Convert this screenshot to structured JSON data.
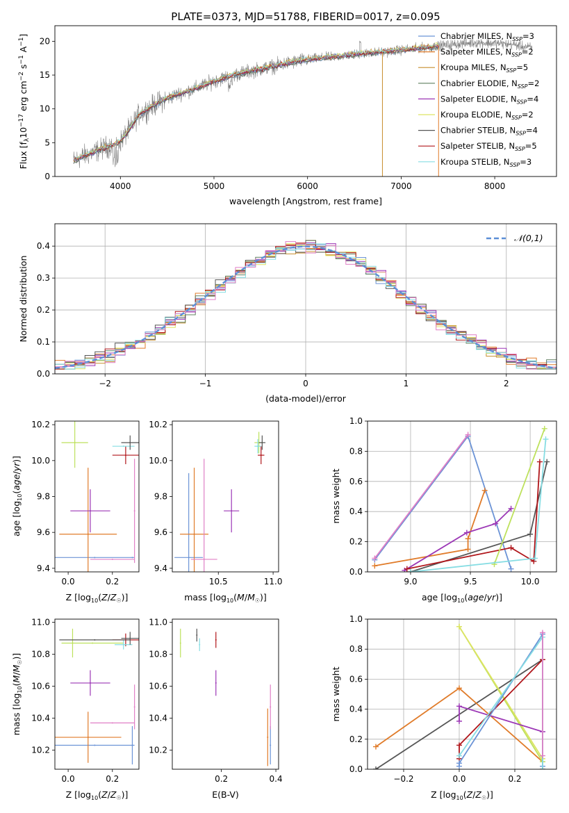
{
  "figure_title": "PLATE=0373, MJD=51788, FIBERID=0017, z=0.095",
  "colors": {
    "Chabrier MILES": "#6b93d6",
    "Salpeter MILES": "#e07b29",
    "Kroupa MILES": "#c78d2c",
    "Chabrier ELODIE": "#5f7f5f",
    "Salpeter ELODIE": "#9b36b5",
    "Kroupa ELODIE": "#dde463",
    "Chabrier STELIB": "#555555",
    "Salpeter STELIB": "#b0161b",
    "Kroupa STELIB": "#86dde3",
    "magenta_series": "#e07fc6",
    "lime_series": "#bde15c",
    "spectrum": "#808080",
    "gaussian": "#5b8ed6"
  },
  "chart_data": [
    {
      "id": "spectrum",
      "type": "line",
      "title": "PLATE=0373, MJD=51788, FIBERID=0017, z=0.095",
      "xlabel": "wavelength [Angstrom, rest frame]",
      "ylabel": "Flux [f_λ 10^-17 erg cm^-2 s^-1 A^-1]",
      "xlim": [
        3300,
        8660
      ],
      "ylim": [
        0,
        22.3
      ],
      "xticks": [
        4000,
        5000,
        6000,
        7000,
        8000
      ],
      "yticks": [
        0,
        5,
        10,
        15,
        20
      ],
      "grid": false,
      "legend_position": "right",
      "continuum": {
        "x": [
          3500,
          3600,
          3700,
          3800,
          3900,
          4000,
          4100,
          4200,
          4400,
          4600,
          4800,
          5000,
          5200,
          5400,
          5600,
          5800,
          6000,
          6200,
          6400,
          6600,
          6800,
          7000,
          7200,
          7400,
          7600,
          7800,
          8000,
          8200,
          8400
        ],
        "y": [
          2.3,
          3.0,
          3.5,
          4.1,
          4.6,
          5.2,
          7.0,
          9.2,
          10.9,
          12.1,
          13.0,
          14.1,
          15.0,
          15.6,
          16.2,
          16.8,
          17.3,
          17.6,
          17.9,
          18.2,
          18.4,
          18.7,
          19.0,
          19.3,
          19.6,
          19.8,
          19.7,
          19.5,
          19.0
        ]
      },
      "models_end_x": 7400,
      "sky_line_drops": [
        {
          "x": 6800,
          "series": "Kroupa MILES"
        },
        {
          "x": 7400,
          "series": "Salpeter MILES"
        }
      ],
      "legend": [
        {
          "label": "Chabrier MILES, N",
          "sub": "SSP",
          "n": "=3"
        },
        {
          "label": "Salpeter MILES, N",
          "sub": "SSP",
          "n": "=2"
        },
        {
          "label": "Kroupa MILES, N",
          "sub": "SSP",
          "n": "=5"
        },
        {
          "label": "Chabrier ELODIE, N",
          "sub": "SSP",
          "n": "=2"
        },
        {
          "label": "Salpeter ELODIE, N",
          "sub": "SSP",
          "n": "=4"
        },
        {
          "label": "Kroupa ELODIE, N",
          "sub": "SSP",
          "n": "=2"
        },
        {
          "label": "Chabrier STELIB, N",
          "sub": "SSP",
          "n": "=4"
        },
        {
          "label": "Salpeter STELIB, N",
          "sub": "SSP",
          "n": "=5"
        },
        {
          "label": "Kroupa STELIB, N",
          "sub": "SSP",
          "n": "=3"
        }
      ]
    },
    {
      "id": "residuals",
      "type": "line",
      "xlabel": "(data-model)/error",
      "ylabel": "Normed distribution",
      "xlim": [
        -2.5,
        2.5
      ],
      "ylim": [
        0,
        0.47
      ],
      "xticks": [
        -2,
        -1,
        0,
        1,
        2
      ],
      "yticks": [
        0.0,
        0.1,
        0.2,
        0.3,
        0.4
      ],
      "grid": true,
      "legend_position": "top-right",
      "legend": "N(0,1)",
      "bin_width": 0.1,
      "bin_start": -2.5,
      "gaussian": {
        "mean": 0,
        "sigma": 1
      }
    },
    {
      "id": "age_vs_Z",
      "type": "scatter",
      "xlabel": "Z [log10(Z/Z☉)]",
      "ylabel": "age [log10(age/yr)]",
      "xlim": [
        -0.06,
        0.32
      ],
      "ylim": [
        9.38,
        10.22
      ],
      "xticks": [
        0.0,
        0.2
      ],
      "yticks": [
        9.4,
        9.6,
        9.8,
        10.0,
        10.2
      ],
      "grid": false,
      "points": [
        {
          "series": "Chabrier MILES",
          "x": 0.12,
          "y": 9.46,
          "xerr": 0.18,
          "yerr": 0.0
        },
        {
          "series": "Chabrier MILES",
          "x": 0.29,
          "y": 9.46,
          "xerr": 0.0,
          "yerr": 0.0
        },
        {
          "series": "Salpeter MILES",
          "x": 0.09,
          "y": 9.59,
          "xerr": 0.13,
          "yerr": 0.37
        },
        {
          "series": "magenta_series",
          "x": 0.2,
          "y": 9.45,
          "xerr": 0.1,
          "yerr": 0.0
        },
        {
          "series": "magenta_series",
          "x": 0.3,
          "y": 9.72,
          "xerr": 0.0,
          "yerr": 0.29
        },
        {
          "series": "Salpeter ELODIE",
          "x": 0.1,
          "y": 9.72,
          "xerr": 0.09,
          "yerr": 0.12
        },
        {
          "series": "Salpeter STELIB",
          "x": 0.26,
          "y": 10.03,
          "xerr": 0.06,
          "yerr": 0.05
        },
        {
          "series": "lime_series",
          "x": 0.03,
          "y": 10.1,
          "xerr": 0.06,
          "yerr": 0.14
        },
        {
          "series": "Kroupa STELIB",
          "x": 0.25,
          "y": 10.08,
          "xerr": 0.05,
          "yerr": 0.0
        },
        {
          "series": "Chabrier STELIB",
          "x": 0.28,
          "y": 10.1,
          "xerr": 0.04,
          "yerr": 0.04
        }
      ]
    },
    {
      "id": "age_vs_mass",
      "type": "scatter",
      "xlabel": "mass [log10(M/M☉)]",
      "xlim": [
        10.08,
        11.05
      ],
      "ylim": [
        9.38,
        10.22
      ],
      "xticks": [
        10.5,
        11.0
      ],
      "xticklabels": [
        "10.5",
        "11.0"
      ],
      "yticks": [
        9.4,
        9.6,
        9.8,
        10.0,
        10.2
      ],
      "grid": false,
      "points": [
        {
          "series": "Chabrier MILES",
          "x": 10.23,
          "y": 9.46,
          "xerr": 0.13,
          "yerr": 0.47
        },
        {
          "series": "Salpeter MILES",
          "x": 10.28,
          "y": 9.59,
          "xerr": 0.13,
          "yerr": 0.37
        },
        {
          "series": "magenta_series",
          "x": 10.37,
          "y": 9.45,
          "xerr": 0.12,
          "yerr": 0.56
        },
        {
          "series": "Salpeter ELODIE",
          "x": 10.62,
          "y": 9.72,
          "xerr": 0.07,
          "yerr": 0.12
        },
        {
          "series": "Salpeter STELIB",
          "x": 10.89,
          "y": 10.03,
          "xerr": 0.03,
          "yerr": 0.05
        },
        {
          "series": "lime_series",
          "x": 10.87,
          "y": 10.1,
          "xerr": 0.04,
          "yerr": 0.06
        },
        {
          "series": "Kroupa STELIB",
          "x": 10.86,
          "y": 10.08,
          "xerr": 0.03,
          "yerr": 0.04
        },
        {
          "series": "Chabrier STELIB",
          "x": 10.9,
          "y": 10.1,
          "xerr": 0.03,
          "yerr": 0.04
        }
      ]
    },
    {
      "id": "weight_vs_age",
      "type": "line",
      "xlabel": "age [log10(age/yr)]",
      "ylabel": "mass weight",
      "xlim": [
        8.64,
        10.22
      ],
      "ylim": [
        0,
        1
      ],
      "xticks": [
        9.0,
        9.5,
        10.0
      ],
      "yticks": [
        0.0,
        0.2,
        0.4,
        0.6,
        0.8,
        1.0
      ],
      "grid": true,
      "series": [
        {
          "name": "Chabrier MILES",
          "x": [
            8.7,
            9.48,
            9.84
          ],
          "y": [
            0.08,
            0.9,
            0.02
          ]
        },
        {
          "name": "magenta_series",
          "x": [
            8.7,
            9.48
          ],
          "y": [
            0.09,
            0.91
          ]
        },
        {
          "name": "Salpeter MILES",
          "x": [
            8.7,
            9.48,
            9.48,
            9.62
          ],
          "y": [
            0.04,
            0.15,
            0.22,
            0.54
          ]
        },
        {
          "name": "Salpeter ELODIE",
          "x": [
            8.95,
            9.47,
            9.71,
            9.84
          ],
          "y": [
            0.01,
            0.26,
            0.32,
            0.42
          ]
        },
        {
          "name": "Chabrier STELIB",
          "x": [
            9.0,
            10.0,
            10.14
          ],
          "y": [
            0.0,
            0.25,
            0.73
          ]
        },
        {
          "name": "Salpeter STELIB",
          "x": [
            8.97,
            9.84,
            10.03,
            10.08
          ],
          "y": [
            0.02,
            0.16,
            0.07,
            0.73
          ]
        },
        {
          "name": "lime_series",
          "x": [
            9.7,
            10.12
          ],
          "y": [
            0.05,
            0.95
          ]
        },
        {
          "name": "Kroupa STELIB",
          "x": [
            9.0,
            10.04,
            10.13
          ],
          "y": [
            0.0,
            0.09,
            0.88
          ]
        }
      ]
    },
    {
      "id": "mass_vs_Z",
      "type": "scatter",
      "xlabel": "Z [log10(Z/Z☉)]",
      "ylabel": "mass [log10(M/M☉)]",
      "xlim": [
        -0.06,
        0.32
      ],
      "ylim": [
        10.08,
        11.02
      ],
      "xticks": [
        0.0,
        0.2
      ],
      "yticks": [
        10.2,
        10.4,
        10.6,
        10.8,
        11.0
      ],
      "grid": false,
      "points": [
        {
          "series": "Chabrier MILES",
          "x": 0.12,
          "y": 10.23,
          "xerr": 0.18,
          "yerr": 0.0
        },
        {
          "series": "Chabrier MILES",
          "x": 0.29,
          "y": 10.23,
          "xerr": 0.0,
          "yerr": 0.12
        },
        {
          "series": "Salpeter MILES",
          "x": 0.09,
          "y": 10.28,
          "xerr": 0.15,
          "yerr": 0.16
        },
        {
          "series": "magenta_series",
          "x": 0.2,
          "y": 10.37,
          "xerr": 0.1,
          "yerr": 0.0
        },
        {
          "series": "magenta_series",
          "x": 0.3,
          "y": 10.47,
          "xerr": 0.0,
          "yerr": 0.14
        },
        {
          "series": "Salpeter ELODIE",
          "x": 0.1,
          "y": 10.62,
          "xerr": 0.09,
          "yerr": 0.08
        },
        {
          "series": "Salpeter STELIB",
          "x": 0.26,
          "y": 10.89,
          "xerr": 0.06,
          "yerr": 0.04
        },
        {
          "series": "lime_series",
          "x": 0.11,
          "y": 10.87,
          "xerr": 0.14,
          "yerr": 0.0
        },
        {
          "series": "lime_series",
          "x": 0.02,
          "y": 10.87,
          "xerr": 0.0,
          "yerr": 0.09
        },
        {
          "series": "Kroupa STELIB",
          "x": 0.25,
          "y": 10.86,
          "xerr": 0.04,
          "yerr": 0.03
        },
        {
          "series": "Chabrier STELIB",
          "x": 0.28,
          "y": 10.9,
          "xerr": 0.04,
          "yerr": 0.04
        },
        {
          "series": "Chabrier STELIB",
          "x": 0.12,
          "y": 10.89,
          "xerr": 0.16,
          "yerr": 0.0
        }
      ]
    },
    {
      "id": "mass_vs_ebv",
      "type": "scatter",
      "xlabel": "E(B-V)",
      "xlim": [
        0.02,
        0.41
      ],
      "ylim": [
        10.08,
        11.02
      ],
      "xticks": [
        0.2,
        0.4
      ],
      "yticks": [
        10.2,
        10.4,
        10.6,
        10.8,
        11.0
      ],
      "grid": false,
      "points": [
        {
          "series": "Chabrier MILES",
          "x": 0.38,
          "y": 10.23,
          "xerr": 0.0,
          "yerr": 0.12
        },
        {
          "series": "Salpeter MILES",
          "x": 0.37,
          "y": 10.28,
          "xerr": 0.0,
          "yerr": 0.18
        },
        {
          "series": "magenta_series",
          "x": 0.38,
          "y": 10.47,
          "xerr": 0.0,
          "yerr": 0.14
        },
        {
          "series": "Salpeter ELODIE",
          "x": 0.18,
          "y": 10.62,
          "xerr": 0.0,
          "yerr": 0.08
        },
        {
          "series": "Salpeter STELIB",
          "x": 0.18,
          "y": 10.89,
          "xerr": 0.0,
          "yerr": 0.05
        },
        {
          "series": "lime_series",
          "x": 0.05,
          "y": 10.87,
          "xerr": 0.0,
          "yerr": 0.09
        },
        {
          "series": "Kroupa STELIB",
          "x": 0.12,
          "y": 10.86,
          "xerr": 0.0,
          "yerr": 0.04
        },
        {
          "series": "Chabrier STELIB",
          "x": 0.11,
          "y": 10.92,
          "xerr": 0.0,
          "yerr": 0.04
        }
      ]
    },
    {
      "id": "weight_vs_Z",
      "type": "line",
      "xlabel": "Z [log10(Z/Z☉)]",
      "ylabel": "mass weight",
      "xlim": [
        -0.33,
        0.35
      ],
      "ylim": [
        0,
        1
      ],
      "xticks": [
        -0.2,
        0.0,
        0.2
      ],
      "yticks": [
        0.0,
        0.2,
        0.4,
        0.6,
        0.8,
        1.0
      ],
      "grid": true,
      "series": [
        {
          "name": "Chabrier STELIB",
          "x": [
            -0.3,
            0.3,
            0.3
          ],
          "y": [
            0.0,
            0.73,
            0.73
          ]
        },
        {
          "name": "Salpeter MILES",
          "x": [
            -0.3,
            0.0,
            0.3
          ],
          "y": [
            0.15,
            0.54,
            0.05
          ]
        },
        {
          "name": "lime_series",
          "x": [
            0.0,
            0.3
          ],
          "y": [
            0.95,
            0.05
          ]
        },
        {
          "name": "Kroupa ELODIE",
          "x": [
            0.0,
            0.3
          ],
          "y": [
            0.95,
            0.07
          ]
        },
        {
          "name": "Salpeter ELODIE",
          "x": [
            0.0,
            0.0,
            0.3
          ],
          "y": [
            0.32,
            0.42,
            0.25
          ]
        },
        {
          "name": "Salpeter STELIB",
          "x": [
            0.0,
            0.0,
            0.3,
            0.3
          ],
          "y": [
            0.07,
            0.16,
            0.73,
            0.0
          ]
        },
        {
          "name": "Chabrier MILES",
          "x": [
            0.0,
            0.0,
            0.3,
            0.3
          ],
          "y": [
            0.02,
            0.04,
            0.9,
            0.02
          ]
        },
        {
          "name": "Kroupa STELIB",
          "x": [
            0.0,
            0.3,
            0.3
          ],
          "y": [
            0.09,
            0.88,
            0.0
          ]
        },
        {
          "name": "magenta_series",
          "x": [
            0.3,
            0.3
          ],
          "y": [
            0.91,
            0.09
          ]
        }
      ]
    }
  ]
}
